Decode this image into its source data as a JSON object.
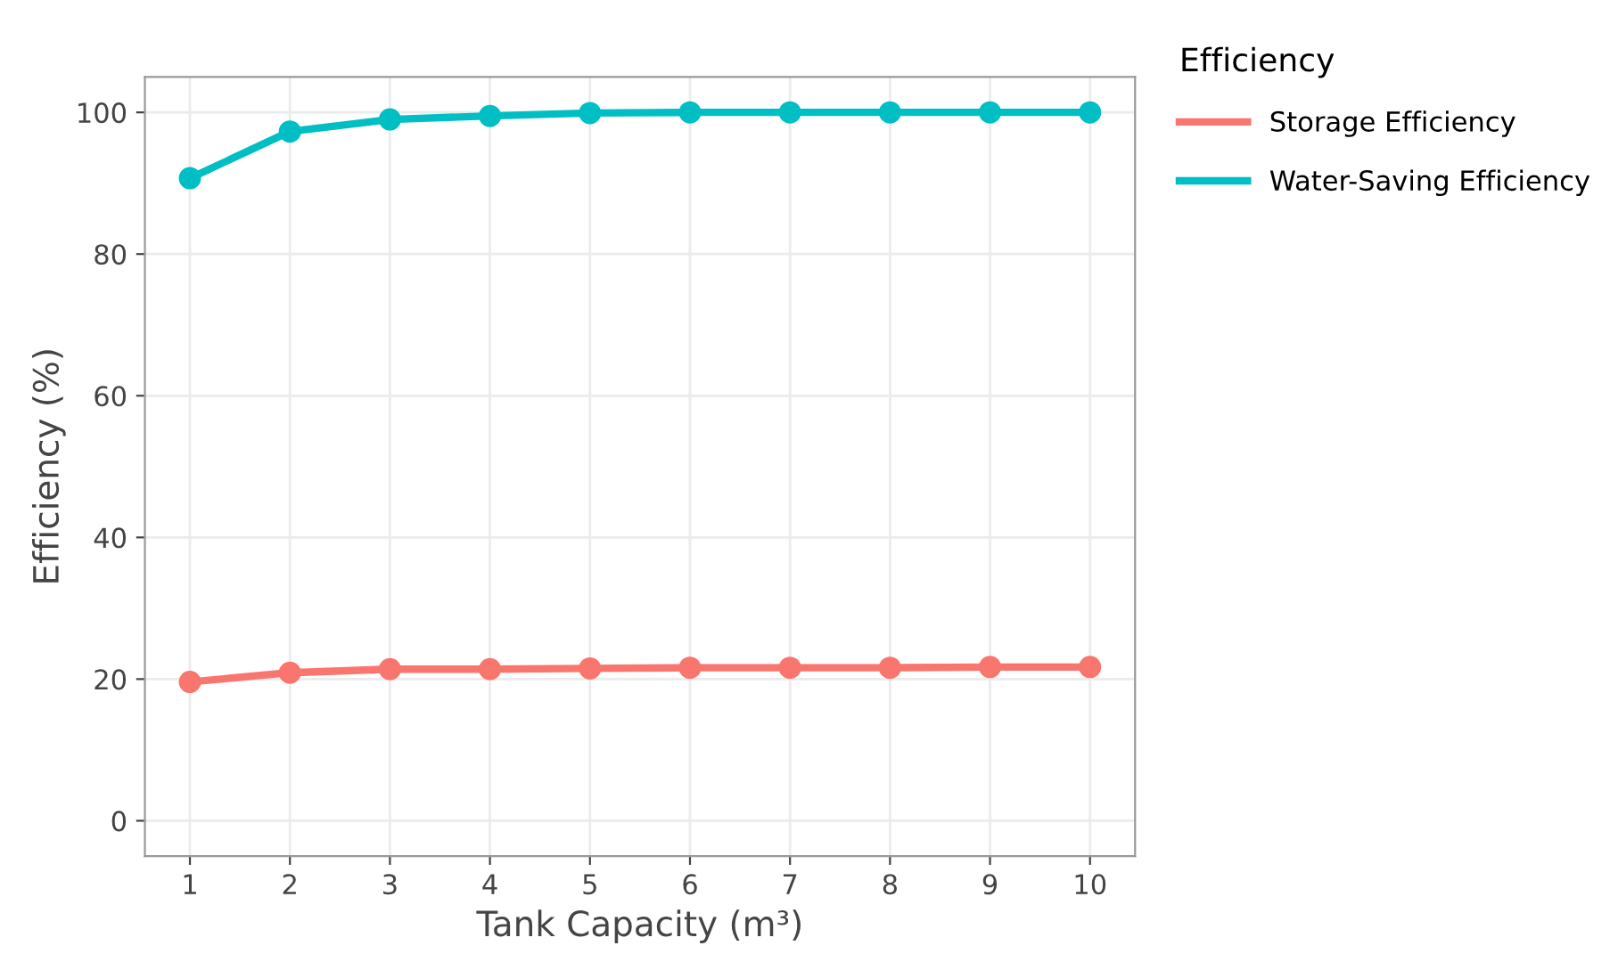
{
  "chart_data": {
    "type": "line",
    "xlabel": "Tank Capacity (m³)",
    "ylabel": "Efficiency (%)",
    "legend_title": "Efficiency",
    "x": [
      1,
      2,
      3,
      4,
      5,
      6,
      7,
      8,
      9,
      10
    ],
    "series": [
      {
        "name": "Storage Efficiency",
        "color": "#f8766d",
        "values": [
          19.6,
          20.9,
          21.4,
          21.4,
          21.5,
          21.6,
          21.6,
          21.6,
          21.7,
          21.7
        ]
      },
      {
        "name": "Water-Saving Efficiency",
        "color": "#00bfc4",
        "values": [
          90.7,
          97.3,
          99.0,
          99.5,
          99.9,
          100,
          100,
          100,
          100,
          100
        ]
      }
    ],
    "xlim": [
      0.55,
      10.45
    ],
    "ylim": [
      -5,
      105
    ],
    "xticks": [
      1,
      2,
      3,
      4,
      5,
      6,
      7,
      8,
      9,
      10
    ],
    "yticks": [
      0,
      20,
      40,
      60,
      80,
      100
    ],
    "grid": true,
    "legend": "top right",
    "marker": "circle",
    "line_style": "solid"
  }
}
